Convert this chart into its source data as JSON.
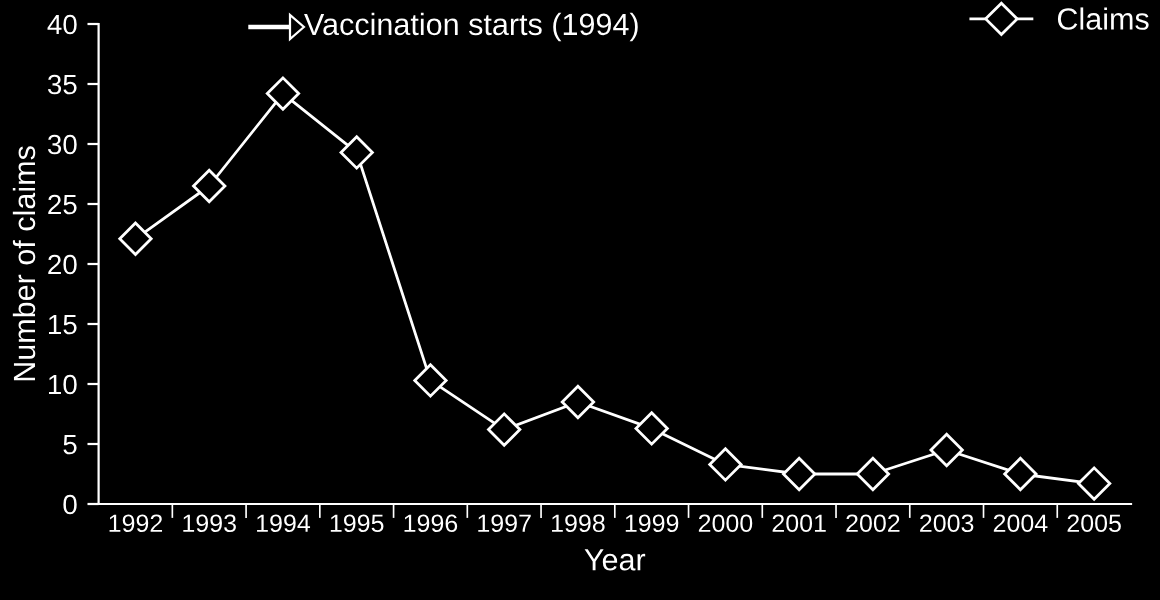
{
  "chart_data": {
    "type": "line",
    "xlabel": "Year",
    "ylabel": "Number of claims",
    "categories": [
      "1992",
      "1993",
      "1994",
      "1995",
      "1996",
      "1997",
      "1998",
      "1999",
      "2000",
      "2001",
      "2002",
      "2003",
      "2004",
      "2005"
    ],
    "series": [
      {
        "name": "Claims",
        "color": "#ffffff",
        "values": [
          22.1,
          26.5,
          34.2,
          29.3,
          10.3,
          6.2,
          8.5,
          6.3,
          3.3,
          2.5,
          2.5,
          4.5,
          2.5,
          1.7
        ]
      }
    ],
    "ylim": [
      0,
      40
    ],
    "yticks": [
      0,
      5,
      10,
      15,
      20,
      25,
      30,
      35,
      40
    ],
    "annotations": [
      "Vaccination starts (1994)"
    ],
    "marker": "diamond",
    "line_style": "solid",
    "legend": "top right",
    "grid": false
  }
}
